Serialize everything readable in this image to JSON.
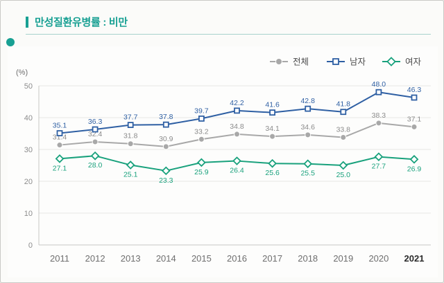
{
  "header": {
    "title": "만성질환유병률 : 비만"
  },
  "legend": {
    "items": [
      {
        "label": "전체",
        "marker": "circle",
        "color": "#a8a8a8"
      },
      {
        "label": "남자",
        "marker": "square",
        "color": "#2e5fa3"
      },
      {
        "label": "여자",
        "marker": "diamond",
        "color": "#18a17c"
      }
    ],
    "text_color": "#4a4a4a"
  },
  "chart_data": {
    "type": "line",
    "title": "만성질환유병률 : 비만",
    "x": [
      2011,
      2012,
      2013,
      2014,
      2015,
      2016,
      2017,
      2018,
      2019,
      2020,
      2021
    ],
    "series": [
      {
        "name": "전체",
        "color": "#a8a8a8",
        "label_color": "#8b8b8b",
        "marker": "circle",
        "values": [
          31.4,
          32.4,
          31.8,
          30.9,
          33.2,
          34.8,
          34.1,
          34.6,
          33.8,
          38.3,
          37.1
        ],
        "label_position": "above"
      },
      {
        "name": "남자",
        "color": "#2e5fa3",
        "label_color": "#2e5fa3",
        "marker": "square",
        "values": [
          35.1,
          36.3,
          37.7,
          37.8,
          39.7,
          42.2,
          41.6,
          42.8,
          41.8,
          48.0,
          46.3
        ],
        "label_position": "above"
      },
      {
        "name": "여자",
        "color": "#18a17c",
        "label_color": "#18a17c",
        "marker": "diamond",
        "values": [
          27.1,
          28.0,
          25.1,
          23.3,
          25.9,
          26.4,
          25.6,
          25.5,
          25.0,
          27.7,
          26.9
        ],
        "label_position": "below"
      }
    ],
    "xlabel": "",
    "ylabel": "(%)",
    "ylim": [
      0,
      50
    ],
    "yticks": [
      0,
      10,
      20,
      30,
      40,
      50
    ],
    "grid": true,
    "legend_position": "top-right",
    "last_x_tick_bold": true
  }
}
